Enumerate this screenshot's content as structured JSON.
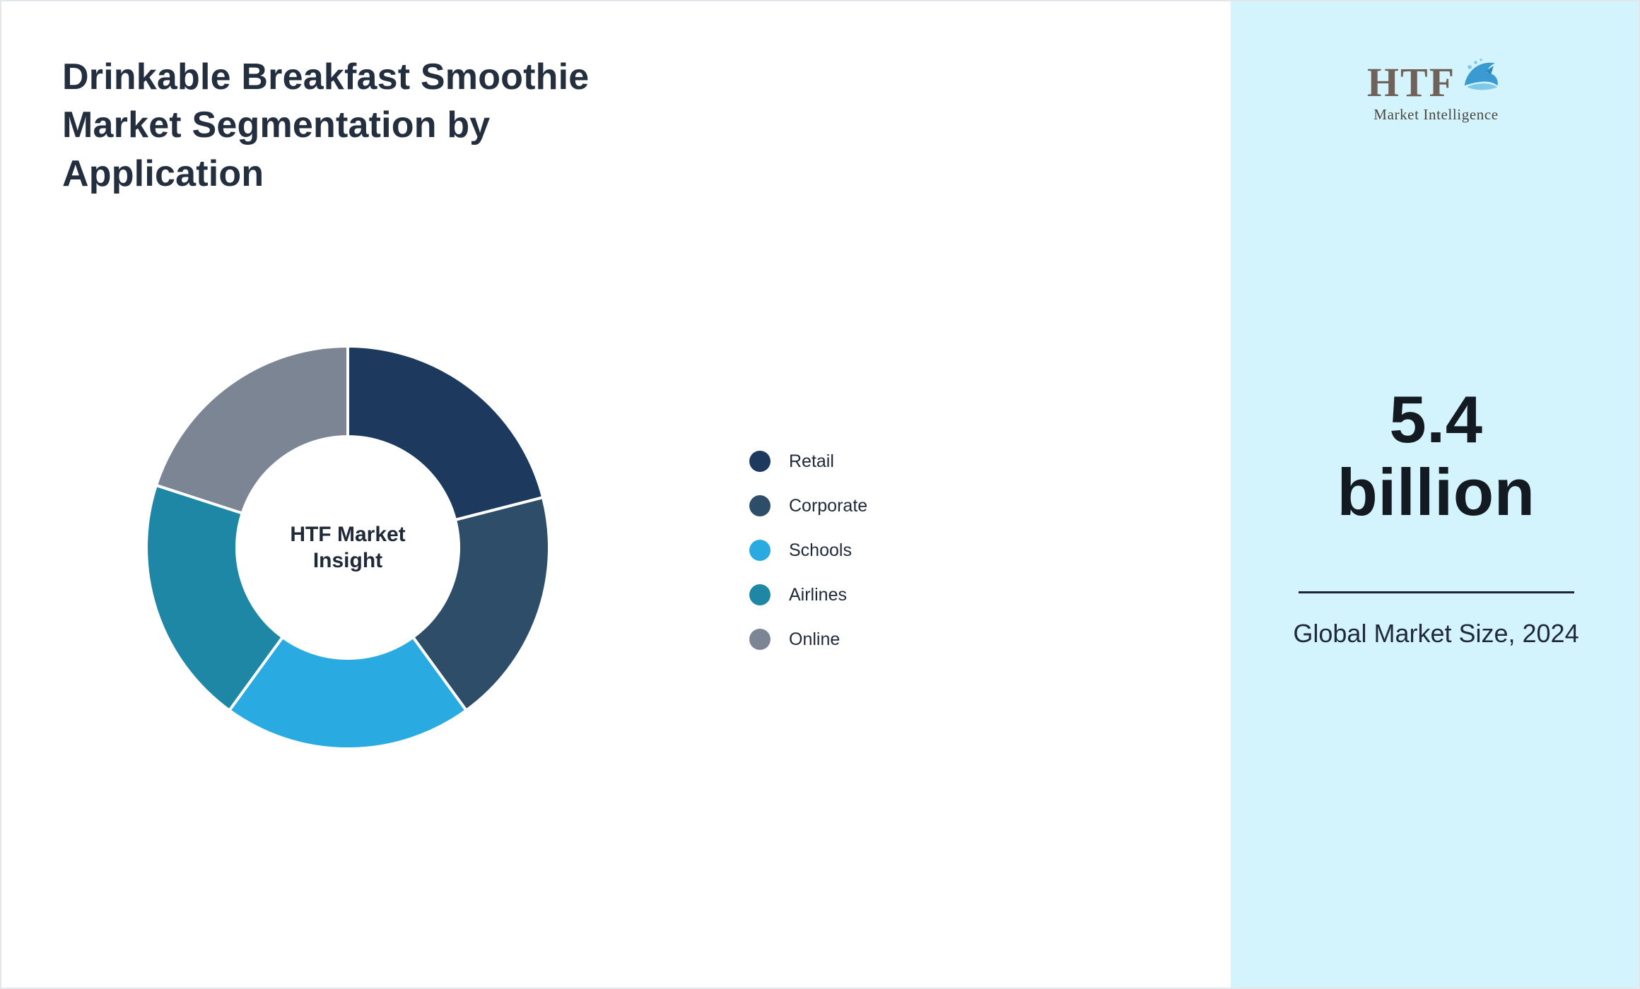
{
  "page": {
    "title": "Drinkable Breakfast Smoothie Market Segmentation by Application"
  },
  "sidebar": {
    "background": "#d4f4fd",
    "logo": {
      "brand": "HTF",
      "tagline": "Market Intelligence"
    },
    "market_size_value_line1": "5.4",
    "market_size_value_line2": "billion",
    "market_size_caption": "Global Market Size, 2024"
  },
  "chart_data": {
    "type": "pie",
    "subtype": "donut",
    "title": "Drinkable Breakfast Smoothie Market Segmentation by Application",
    "center_label": "HTF Market Insight",
    "legend_position": "right",
    "start_angle_deg": 0,
    "inner_radius_ratio": 0.55,
    "values_unit": "percent (estimated from figure)",
    "series": [
      {
        "name": "Retail",
        "value": 21,
        "color": "#1d3a5e"
      },
      {
        "name": "Corporate",
        "value": 19,
        "color": "#2e4d69"
      },
      {
        "name": "Schools",
        "value": 20,
        "color": "#29abe2"
      },
      {
        "name": "Airlines",
        "value": 20,
        "color": "#1e87a5"
      },
      {
        "name": "Online",
        "value": 20,
        "color": "#7b8594"
      }
    ]
  }
}
